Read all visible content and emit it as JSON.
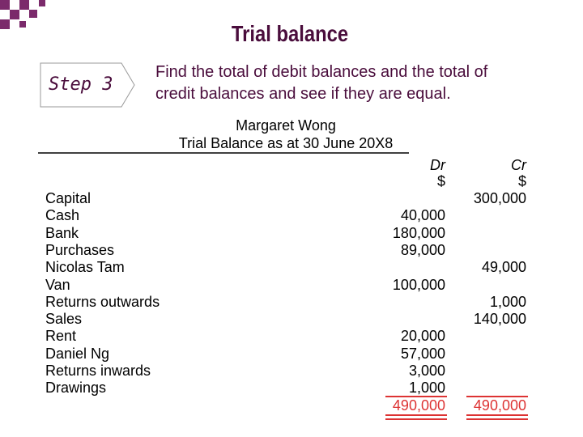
{
  "header": {
    "title": "Trial balance"
  },
  "step": {
    "label": "Step 3",
    "lines": [
      "Find the total of debit balances and the total of",
      "credit balances and see if they are equal."
    ]
  },
  "statement": {
    "name": "Margaret Wong",
    "heading": "Trial Balance as at 30 June 20X8",
    "columns": [
      {
        "name": "Dr",
        "unit": "$"
      },
      {
        "name": "Cr",
        "unit": "$"
      }
    ],
    "rows": [
      [
        "Capital",
        null,
        "300,000"
      ],
      [
        "Cash",
        "40,000",
        null
      ],
      [
        "Bank",
        "180,000",
        null
      ],
      [
        "Purchases",
        "89,000",
        null
      ],
      [
        "Nicolas Tam",
        null,
        "49,000"
      ],
      [
        "Van",
        "100,000",
        null
      ],
      [
        "Returns outwards",
        null,
        "1,000"
      ],
      [
        "Sales",
        null,
        "140,000"
      ],
      [
        "Rent",
        "20,000",
        null
      ],
      [
        "Daniel Ng",
        "57,000",
        null
      ],
      [
        "Returns inwards",
        "3,000",
        null
      ],
      [
        "Drawings",
        "1,000",
        null
      ]
    ],
    "totals": [
      "490,000",
      "490,000"
    ]
  }
}
